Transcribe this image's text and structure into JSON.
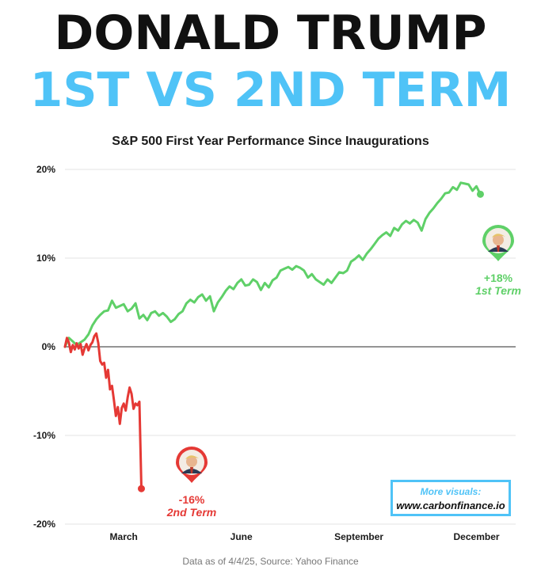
{
  "header": {
    "title_line1": "DONALD TRUMP",
    "title_line2": "1ST VS 2ND TERM"
  },
  "footer": {
    "source": "Data as of 4/4/25, Source: Yahoo Finance"
  },
  "promo": {
    "line1": "More visuals:",
    "line2": "www.carbonfinance.io"
  },
  "colors": {
    "title": "#111111",
    "accent": "#4fc3f7",
    "first_term": "#5fd068",
    "second_term": "#e53935",
    "grid": "#e3e3e3",
    "zero_line": "#555555"
  },
  "chart_data": {
    "type": "line",
    "title": "S&P 500 First Year Performance Since Inaugurations",
    "xlabel": "",
    "ylabel": "",
    "x_unit": "month",
    "x_ticks": [
      {
        "label": "March",
        "x": 1.5
      },
      {
        "label": "June",
        "x": 4.5
      },
      {
        "label": "September",
        "x": 7.5
      },
      {
        "label": "December",
        "x": 10.5
      }
    ],
    "xlim": [
      0,
      11.5
    ],
    "ylim": [
      -20,
      20
    ],
    "y_ticks": [
      {
        "label": "20%",
        "y": 20
      },
      {
        "label": "10%",
        "y": 10
      },
      {
        "label": "0%",
        "y": 0
      },
      {
        "label": "-10%",
        "y": -10
      },
      {
        "label": "-20%",
        "y": -20
      }
    ],
    "grid": true,
    "series": [
      {
        "key": "first",
        "color": "#5fd068",
        "annotation_value": "+18%",
        "annotation_label": "1st Term",
        "icon": "trump-portrait-icon",
        "points": [
          [
            0.0,
            0.0
          ],
          [
            0.1,
            1.0
          ],
          [
            0.2,
            0.6
          ],
          [
            0.3,
            0.2
          ],
          [
            0.4,
            0.5
          ],
          [
            0.5,
            0.8
          ],
          [
            0.6,
            1.4
          ],
          [
            0.7,
            2.4
          ],
          [
            0.8,
            3.1
          ],
          [
            0.9,
            3.6
          ],
          [
            1.0,
            4.0
          ],
          [
            1.1,
            4.1
          ],
          [
            1.2,
            5.2
          ],
          [
            1.3,
            4.4
          ],
          [
            1.4,
            4.6
          ],
          [
            1.5,
            4.8
          ],
          [
            1.6,
            4.0
          ],
          [
            1.7,
            4.3
          ],
          [
            1.8,
            4.9
          ],
          [
            1.9,
            3.2
          ],
          [
            2.0,
            3.6
          ],
          [
            2.1,
            3.0
          ],
          [
            2.2,
            3.8
          ],
          [
            2.3,
            4.0
          ],
          [
            2.4,
            3.5
          ],
          [
            2.5,
            3.8
          ],
          [
            2.6,
            3.4
          ],
          [
            2.7,
            2.8
          ],
          [
            2.8,
            3.1
          ],
          [
            2.9,
            3.7
          ],
          [
            3.0,
            4.0
          ],
          [
            3.1,
            4.9
          ],
          [
            3.2,
            5.3
          ],
          [
            3.3,
            5.0
          ],
          [
            3.4,
            5.6
          ],
          [
            3.5,
            5.9
          ],
          [
            3.6,
            5.2
          ],
          [
            3.7,
            5.7
          ],
          [
            3.8,
            4.0
          ],
          [
            3.9,
            5.0
          ],
          [
            4.0,
            5.6
          ],
          [
            4.1,
            6.3
          ],
          [
            4.2,
            6.8
          ],
          [
            4.3,
            6.5
          ],
          [
            4.4,
            7.2
          ],
          [
            4.5,
            7.6
          ],
          [
            4.6,
            6.9
          ],
          [
            4.7,
            7.0
          ],
          [
            4.8,
            7.6
          ],
          [
            4.9,
            7.3
          ],
          [
            5.0,
            6.4
          ],
          [
            5.1,
            7.2
          ],
          [
            5.2,
            6.7
          ],
          [
            5.3,
            7.5
          ],
          [
            5.4,
            7.8
          ],
          [
            5.5,
            8.6
          ],
          [
            5.6,
            8.8
          ],
          [
            5.7,
            9.0
          ],
          [
            5.8,
            8.7
          ],
          [
            5.9,
            9.1
          ],
          [
            6.0,
            8.9
          ],
          [
            6.1,
            8.6
          ],
          [
            6.2,
            7.8
          ],
          [
            6.3,
            8.2
          ],
          [
            6.4,
            7.6
          ],
          [
            6.5,
            7.3
          ],
          [
            6.6,
            7.0
          ],
          [
            6.7,
            7.6
          ],
          [
            6.8,
            7.2
          ],
          [
            6.9,
            7.8
          ],
          [
            7.0,
            8.4
          ],
          [
            7.1,
            8.3
          ],
          [
            7.2,
            8.6
          ],
          [
            7.3,
            9.6
          ],
          [
            7.4,
            9.9
          ],
          [
            7.5,
            10.3
          ],
          [
            7.6,
            9.8
          ],
          [
            7.7,
            10.5
          ],
          [
            7.8,
            11.0
          ],
          [
            7.9,
            11.6
          ],
          [
            8.0,
            12.2
          ],
          [
            8.1,
            12.6
          ],
          [
            8.2,
            12.9
          ],
          [
            8.3,
            12.5
          ],
          [
            8.4,
            13.4
          ],
          [
            8.5,
            13.1
          ],
          [
            8.6,
            13.8
          ],
          [
            8.7,
            14.2
          ],
          [
            8.8,
            13.9
          ],
          [
            8.9,
            14.3
          ],
          [
            9.0,
            14.0
          ],
          [
            9.1,
            13.1
          ],
          [
            9.2,
            14.4
          ],
          [
            9.3,
            15.1
          ],
          [
            9.4,
            15.6
          ],
          [
            9.5,
            16.2
          ],
          [
            9.6,
            16.7
          ],
          [
            9.7,
            17.3
          ],
          [
            9.8,
            17.4
          ],
          [
            9.9,
            18.0
          ],
          [
            10.0,
            17.7
          ],
          [
            10.1,
            18.5
          ],
          [
            10.2,
            18.4
          ],
          [
            10.3,
            18.3
          ],
          [
            10.4,
            17.6
          ],
          [
            10.5,
            18.1
          ],
          [
            10.6,
            17.2
          ]
        ]
      },
      {
        "key": "second",
        "color": "#e53935",
        "annotation_value": "-16%",
        "annotation_label": "2nd Term",
        "icon": "trump-portrait-icon",
        "points": [
          [
            0.0,
            0.0
          ],
          [
            0.05,
            1.0
          ],
          [
            0.1,
            0.5
          ],
          [
            0.15,
            -0.6
          ],
          [
            0.2,
            0.2
          ],
          [
            0.25,
            -0.3
          ],
          [
            0.3,
            0.4
          ],
          [
            0.35,
            -0.2
          ],
          [
            0.4,
            0.3
          ],
          [
            0.45,
            -0.9
          ],
          [
            0.5,
            -0.2
          ],
          [
            0.55,
            0.3
          ],
          [
            0.6,
            -0.4
          ],
          [
            0.65,
            0.2
          ],
          [
            0.7,
            0.5
          ],
          [
            0.75,
            1.2
          ],
          [
            0.8,
            1.5
          ],
          [
            0.85,
            0.4
          ],
          [
            0.9,
            -1.6
          ],
          [
            0.95,
            -2.0
          ],
          [
            1.0,
            -1.8
          ],
          [
            1.05,
            -3.5
          ],
          [
            1.1,
            -2.6
          ],
          [
            1.15,
            -4.8
          ],
          [
            1.2,
            -4.4
          ],
          [
            1.25,
            -6.0
          ],
          [
            1.3,
            -7.8
          ],
          [
            1.35,
            -6.8
          ],
          [
            1.4,
            -8.7
          ],
          [
            1.45,
            -6.9
          ],
          [
            1.5,
            -6.4
          ],
          [
            1.55,
            -7.2
          ],
          [
            1.6,
            -5.7
          ],
          [
            1.65,
            -4.6
          ],
          [
            1.7,
            -5.3
          ],
          [
            1.75,
            -7.0
          ],
          [
            1.8,
            -6.4
          ],
          [
            1.85,
            -6.6
          ],
          [
            1.9,
            -6.2
          ],
          [
            1.95,
            -16.0
          ]
        ]
      }
    ]
  }
}
